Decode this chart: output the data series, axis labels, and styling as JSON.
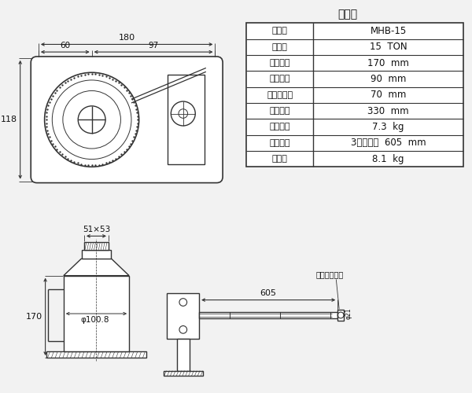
{
  "bg_color": "#f2f2f2",
  "spec_title": "仕　様",
  "spec_rows": [
    [
      "型　式",
      "MHB-15"
    ],
    [
      "能　力",
      "15  TON"
    ],
    [
      "最低高さ",
      "170  mm"
    ],
    [
      "油圧行程",
      "90  mm"
    ],
    [
      "可伸ネジ長",
      "70  mm"
    ],
    [
      "最高高さ",
      "330  mm"
    ],
    [
      "本体質量",
      "7.3  kg"
    ],
    [
      "ハンドル",
      "3本ツナギ  605  mm"
    ],
    [
      "総質量",
      "8.1  kg"
    ]
  ],
  "line_color": "#333333",
  "text_color": "#111111"
}
